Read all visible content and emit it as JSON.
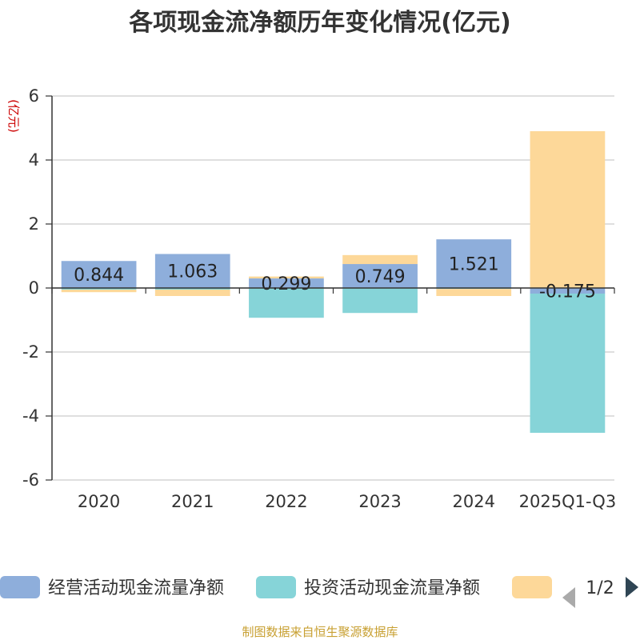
{
  "chart_data": {
    "type": "bar",
    "stacked": true,
    "title": "各项现金流净额历年变化情况(亿元)",
    "ylabel": "(亿元)",
    "categories": [
      "2020",
      "2021",
      "2022",
      "2023",
      "2024",
      "2025Q1-Q3"
    ],
    "ylim": [
      -6,
      6
    ],
    "yticks": [
      6,
      4,
      2,
      0,
      -2,
      -4,
      -6
    ],
    "grid": true,
    "legend_position": "bottom",
    "series": [
      {
        "name": "经营活动现金流量净额",
        "color": "#8eaedb",
        "values": [
          0.844,
          1.063,
          0.299,
          0.749,
          1.521,
          -0.175
        ],
        "labels": [
          "0.844",
          "1.063",
          "0.299",
          "0.749",
          "1.521",
          "-0.175"
        ]
      },
      {
        "name": "投资活动现金流量净额",
        "color": "#86d4d8",
        "values": [
          -0.05,
          -0.05,
          -0.93,
          -0.78,
          -0.03,
          -4.35
        ]
      },
      {
        "name": "",
        "color": "#fdd899",
        "values": [
          -0.08,
          -0.2,
          0.06,
          0.28,
          -0.22,
          4.9
        ]
      }
    ]
  },
  "legend": {
    "items": [
      "经营活动现金流量净额",
      "投资活动现金流量净额",
      ""
    ],
    "page": "1/2"
  },
  "source": "制图数据来自恒生聚源数据库"
}
